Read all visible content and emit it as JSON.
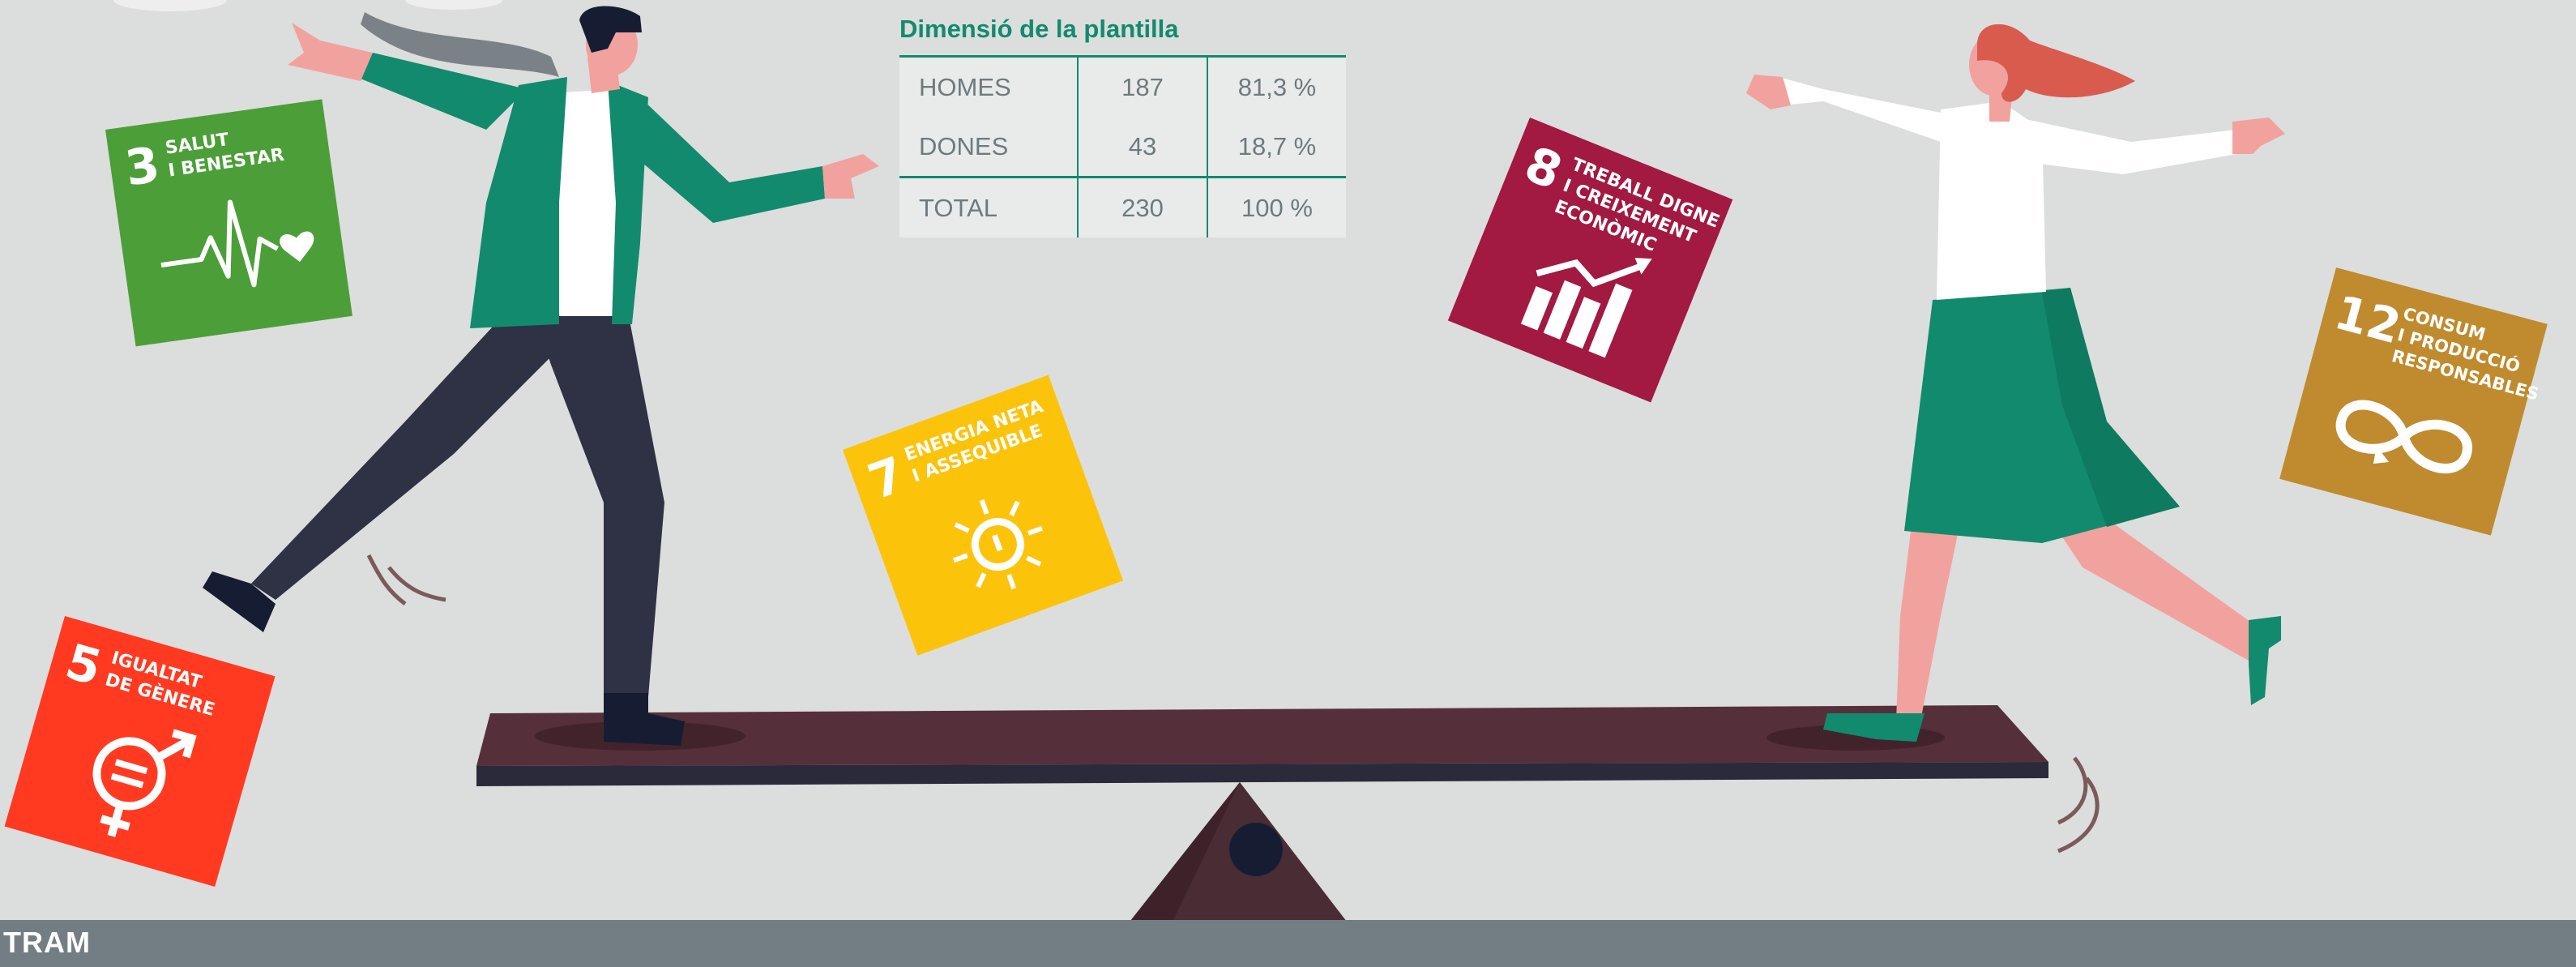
{
  "table": {
    "title": "Dimensió de la plantilla",
    "rows": [
      {
        "label": "HOMES",
        "count": "187",
        "pct": "81,3 %"
      },
      {
        "label": "DONES",
        "count": "43",
        "pct": "18,7 %"
      },
      {
        "label": "TOTAL",
        "count": "230",
        "pct": "100 %"
      }
    ]
  },
  "sdg_cards": [
    {
      "number": "3",
      "line1": "SALUT",
      "line2": "I BENESTAR",
      "line3": "",
      "color": "#4c9f38",
      "icon": "heartbeat-icon"
    },
    {
      "number": "5",
      "line1": "IGUALTAT",
      "line2": "DE GÈNERE",
      "line3": "",
      "color": "#ff3a21",
      "icon": "gender-equality-icon"
    },
    {
      "number": "7",
      "line1": "ENERGIA NETA",
      "line2": "I ASSEQUIBLE",
      "line3": "",
      "color": "#fcc30b",
      "icon": "sun-power-icon"
    },
    {
      "number": "8",
      "line1": "TREBALL DIGNE",
      "line2": "I CREIXEMENT",
      "line3": "ECONÒMIC",
      "color": "#a21942",
      "icon": "growth-chart-icon"
    },
    {
      "number": "12",
      "line1": "CONSUM",
      "line2": "I PRODUCCIÓ",
      "line3": "RESPONSABLES",
      "color": "#bf8b2e",
      "icon": "infinity-loop-icon"
    }
  ],
  "footer": {
    "logo": "TRAM",
    "color": "#737e84"
  },
  "colors": {
    "background": "#dcdddd",
    "accent": "#128a6d",
    "plank": "#55303a",
    "fulcrum": "#4a2c34"
  }
}
